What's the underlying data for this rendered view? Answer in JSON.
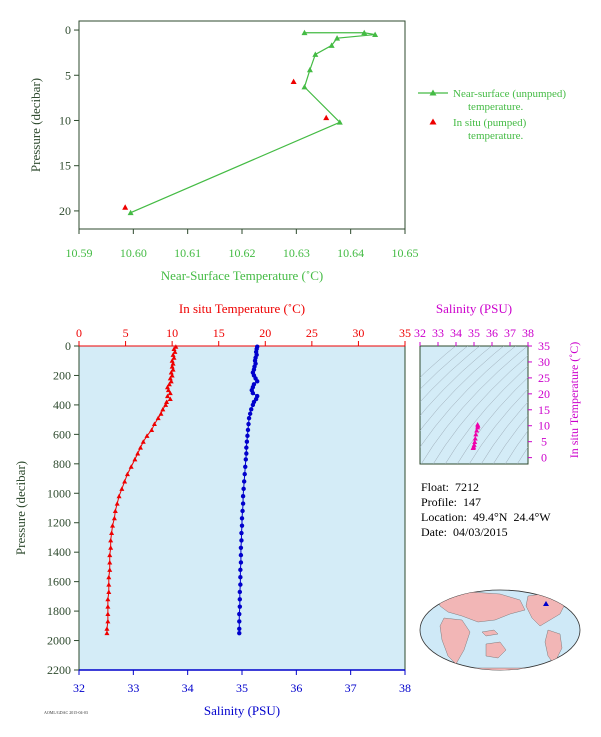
{
  "colors": {
    "frame": "#2e4a2e",
    "near_surface": "#44bb44",
    "insitu": "#ee0000",
    "salinity": "#0000cc",
    "magenta": "#cc00cc",
    "panel_bg": "#d4ecf7",
    "land": "#f2b6b6",
    "ocean": "#cfe9f7"
  },
  "info": {
    "float": "Float:  7212",
    "profile": "Profile:  147",
    "location": "Location:  49.4°N  24.4°W",
    "date": "Date:  04/03/2015"
  },
  "chart_data": [
    {
      "type": "line",
      "xlabel": "Near-Surface Temperature (˚C)",
      "ylabel": "Pressure (decibar)",
      "xlim": [
        10.59,
        10.65
      ],
      "ylim": [
        22,
        -1
      ],
      "xticks": [
        "10.59",
        "10.60",
        "10.61",
        "10.62",
        "10.63",
        "10.64",
        "10.65"
      ],
      "yticks": [
        "0",
        "5",
        "10",
        "15",
        "20"
      ],
      "legend_position": "right",
      "series": [
        {
          "name": "Near-surface (unpumped) temperature.",
          "points": [
            [
              10.6315,
              0.3
            ],
            [
              10.6425,
              0.3
            ],
            [
              10.6445,
              0.5
            ],
            [
              10.6375,
              0.9
            ],
            [
              10.6365,
              1.7
            ],
            [
              10.6335,
              2.7
            ],
            [
              10.6325,
              4.4
            ],
            [
              10.6315,
              6.3
            ],
            [
              10.638,
              10.2
            ],
            [
              10.5995,
              20.2
            ]
          ]
        },
        {
          "name": "In situ (pumped) temperature.",
          "points": [
            [
              10.6295,
              5.7
            ],
            [
              10.6355,
              9.7
            ],
            [
              10.5985,
              19.6
            ]
          ]
        }
      ]
    },
    {
      "type": "line",
      "ylabel": "Pressure (decibar)",
      "ylim": [
        2200,
        0
      ],
      "yticks": [
        "0",
        "200",
        "400",
        "600",
        "800",
        "1000",
        "1200",
        "1400",
        "1600",
        "1800",
        "2000",
        "2200"
      ],
      "top_axis": {
        "label": "In situ Temperature (˚C)",
        "range": [
          0,
          35
        ],
        "ticks": [
          "0",
          "5",
          "10",
          "15",
          "20",
          "25",
          "30",
          "35"
        ]
      },
      "bottom_axis": {
        "label": "Salinity (PSU)",
        "range": [
          32,
          38
        ],
        "ticks": [
          "32",
          "33",
          "34",
          "35",
          "36",
          "37",
          "38"
        ]
      },
      "series": [
        {
          "name": "In situ Temperature (˚C)",
          "points": [
            [
              10.4,
              5
            ],
            [
              10.2,
              20
            ],
            [
              10.3,
              40
            ],
            [
              10.1,
              60
            ],
            [
              10.2,
              80
            ],
            [
              10.0,
              100
            ],
            [
              10.1,
              120
            ],
            [
              10.0,
              140
            ],
            [
              10.1,
              160
            ],
            [
              9.9,
              180
            ],
            [
              10.0,
              200
            ],
            [
              9.8,
              220
            ],
            [
              9.9,
              240
            ],
            [
              9.7,
              260
            ],
            [
              9.5,
              280
            ],
            [
              9.6,
              300
            ],
            [
              9.8,
              320
            ],
            [
              9.5,
              340
            ],
            [
              9.8,
              360
            ],
            [
              9.4,
              380
            ],
            [
              9.3,
              400
            ],
            [
              9.0,
              430
            ],
            [
              8.8,
              460
            ],
            [
              8.5,
              490
            ],
            [
              8.1,
              530
            ],
            [
              7.8,
              570
            ],
            [
              7.3,
              610
            ],
            [
              6.9,
              650
            ],
            [
              6.6,
              690
            ],
            [
              6.3,
              730
            ],
            [
              6.0,
              770
            ],
            [
              5.6,
              820
            ],
            [
              5.2,
              870
            ],
            [
              4.9,
              920
            ],
            [
              4.6,
              970
            ],
            [
              4.3,
              1020
            ],
            [
              4.1,
              1070
            ],
            [
              3.9,
              1120
            ],
            [
              3.8,
              1170
            ],
            [
              3.6,
              1220
            ],
            [
              3.5,
              1270
            ],
            [
              3.4,
              1320
            ],
            [
              3.4,
              1370
            ],
            [
              3.3,
              1420
            ],
            [
              3.3,
              1470
            ],
            [
              3.3,
              1520
            ],
            [
              3.2,
              1570
            ],
            [
              3.2,
              1620
            ],
            [
              3.2,
              1670
            ],
            [
              3.1,
              1720
            ],
            [
              3.1,
              1770
            ],
            [
              3.1,
              1820
            ],
            [
              3.1,
              1870
            ],
            [
              3.0,
              1920
            ],
            [
              3.0,
              1950
            ]
          ]
        },
        {
          "name": "Salinity (PSU)",
          "points": [
            [
              35.28,
              5
            ],
            [
              35.27,
              20
            ],
            [
              35.26,
              40
            ],
            [
              35.27,
              60
            ],
            [
              35.25,
              80
            ],
            [
              35.24,
              100
            ],
            [
              35.25,
              120
            ],
            [
              35.23,
              140
            ],
            [
              35.22,
              160
            ],
            [
              35.2,
              180
            ],
            [
              35.22,
              200
            ],
            [
              35.25,
              220
            ],
            [
              35.28,
              240
            ],
            [
              35.22,
              260
            ],
            [
              35.2,
              280
            ],
            [
              35.18,
              300
            ],
            [
              35.2,
              320
            ],
            [
              35.28,
              340
            ],
            [
              35.26,
              360
            ],
            [
              35.22,
              380
            ],
            [
              35.2,
              400
            ],
            [
              35.17,
              430
            ],
            [
              35.15,
              460
            ],
            [
              35.13,
              490
            ],
            [
              35.12,
              530
            ],
            [
              35.11,
              570
            ],
            [
              35.1,
              610
            ],
            [
              35.09,
              650
            ],
            [
              35.08,
              690
            ],
            [
              35.08,
              730
            ],
            [
              35.07,
              770
            ],
            [
              35.06,
              820
            ],
            [
              35.05,
              870
            ],
            [
              35.04,
              920
            ],
            [
              35.03,
              970
            ],
            [
              35.02,
              1020
            ],
            [
              35.02,
              1070
            ],
            [
              35.01,
              1120
            ],
            [
              35.0,
              1170
            ],
            [
              35.0,
              1220
            ],
            [
              34.99,
              1270
            ],
            [
              34.99,
              1320
            ],
            [
              34.98,
              1370
            ],
            [
              34.98,
              1420
            ],
            [
              34.98,
              1470
            ],
            [
              34.97,
              1520
            ],
            [
              34.97,
              1570
            ],
            [
              34.97,
              1620
            ],
            [
              34.96,
              1670
            ],
            [
              34.96,
              1720
            ],
            [
              34.96,
              1770
            ],
            [
              34.95,
              1820
            ],
            [
              34.95,
              1870
            ],
            [
              34.95,
              1920
            ],
            [
              34.95,
              1950
            ]
          ]
        }
      ]
    },
    {
      "type": "scatter",
      "top_label": "Salinity (PSU)",
      "right_label": "In situ Temperature (˚C)",
      "xlim": [
        32,
        38
      ],
      "ylim": [
        -2,
        35
      ],
      "xticks": [
        "32",
        "33",
        "34",
        "35",
        "36",
        "37",
        "38"
      ],
      "yticks": [
        "0",
        "5",
        "10",
        "15",
        "20",
        "25",
        "30",
        "35"
      ],
      "points": [
        [
          35.2,
          10.4
        ],
        [
          35.22,
          10.0
        ],
        [
          35.2,
          9.5
        ],
        [
          35.15,
          8.5
        ],
        [
          35.1,
          7.3
        ],
        [
          35.07,
          6.0
        ],
        [
          35.04,
          4.9
        ],
        [
          35.01,
          4.0
        ],
        [
          34.98,
          3.4
        ],
        [
          34.96,
          3.1
        ],
        [
          34.95,
          3.0
        ]
      ]
    }
  ]
}
